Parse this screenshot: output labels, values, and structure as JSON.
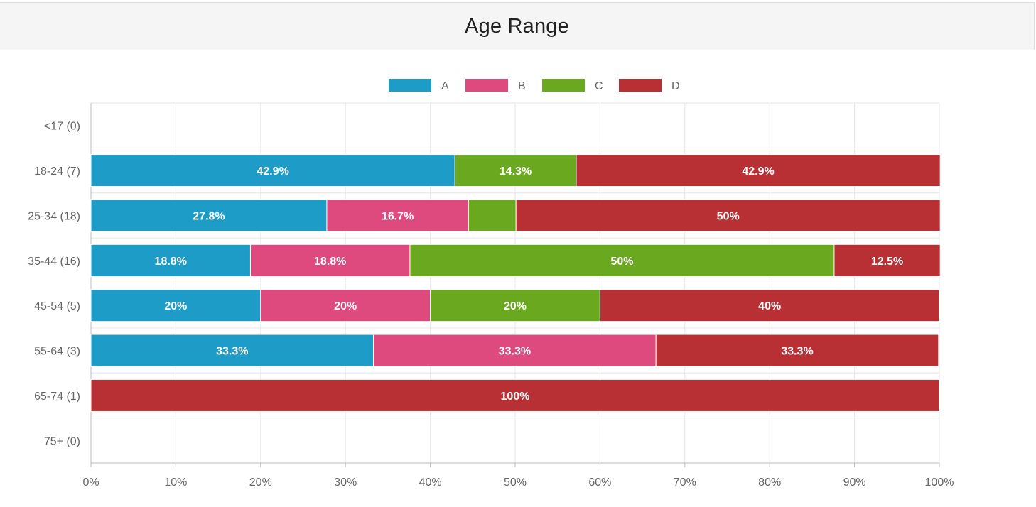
{
  "panel": {
    "title": "Age Range"
  },
  "chart_data": {
    "type": "bar",
    "orientation": "horizontal",
    "stacked": "percent",
    "title": "",
    "xlabel": "",
    "ylabel": "",
    "xlim": [
      0,
      100
    ],
    "x_ticks": [
      "0%",
      "10%",
      "20%",
      "30%",
      "40%",
      "50%",
      "60%",
      "70%",
      "80%",
      "90%",
      "100%"
    ],
    "grid": true,
    "legend_position": "top-center",
    "categories": [
      "<17 (0)",
      "18-24 (7)",
      "25-34 (18)",
      "35-44 (16)",
      "45-54 (5)",
      "55-64 (3)",
      "65-74 (1)",
      "75+ (0)"
    ],
    "series": [
      {
        "name": "A",
        "color": "#1e9cc8",
        "values": [
          0,
          42.9,
          27.8,
          18.8,
          20,
          33.3,
          0,
          0
        ],
        "labels": [
          "",
          "42.9%",
          "27.8%",
          "18.8%",
          "20%",
          "33.3%",
          "",
          ""
        ]
      },
      {
        "name": "B",
        "color": "#de4a7e",
        "values": [
          0,
          0,
          16.7,
          18.8,
          20,
          33.3,
          0,
          0
        ],
        "labels": [
          "",
          "",
          "16.7%",
          "18.8%",
          "20%",
          "33.3%",
          "",
          ""
        ]
      },
      {
        "name": "C",
        "color": "#6aa81f",
        "values": [
          0,
          14.3,
          5.6,
          50,
          20,
          0,
          0,
          0
        ],
        "labels": [
          "",
          "14.3%",
          "",
          "50%",
          "20%",
          "",
          "",
          ""
        ]
      },
      {
        "name": "D",
        "color": "#b83034",
        "values": [
          0,
          42.9,
          50,
          12.5,
          40,
          33.3,
          100,
          0
        ],
        "labels": [
          "",
          "42.9%",
          "50%",
          "12.5%",
          "40%",
          "33.3%",
          "100%",
          ""
        ]
      }
    ]
  }
}
